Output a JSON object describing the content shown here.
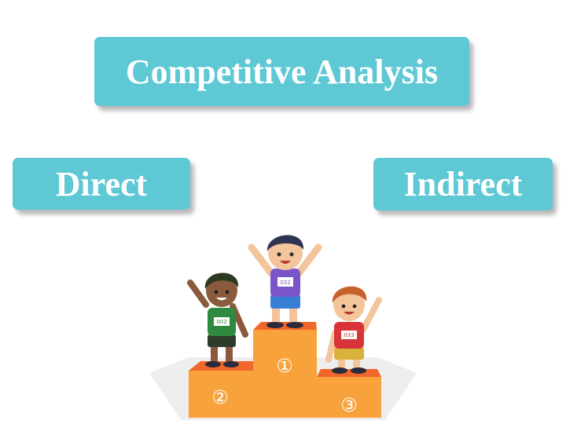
{
  "title": "Competitive Analysis",
  "categories": {
    "direct": "Direct",
    "indirect": "Indirect"
  },
  "podium": {
    "places": {
      "first": "①",
      "second": "②",
      "third": "③"
    },
    "bibs": {
      "first": "032",
      "second": "002",
      "third": "033"
    }
  },
  "colors": {
    "box": "#5ec8d5",
    "box_text": "#ffffff",
    "podium": "#f7a23b",
    "podium_top": "#f1662a"
  },
  "icons": [
    "kids-on-podium-illustration"
  ]
}
